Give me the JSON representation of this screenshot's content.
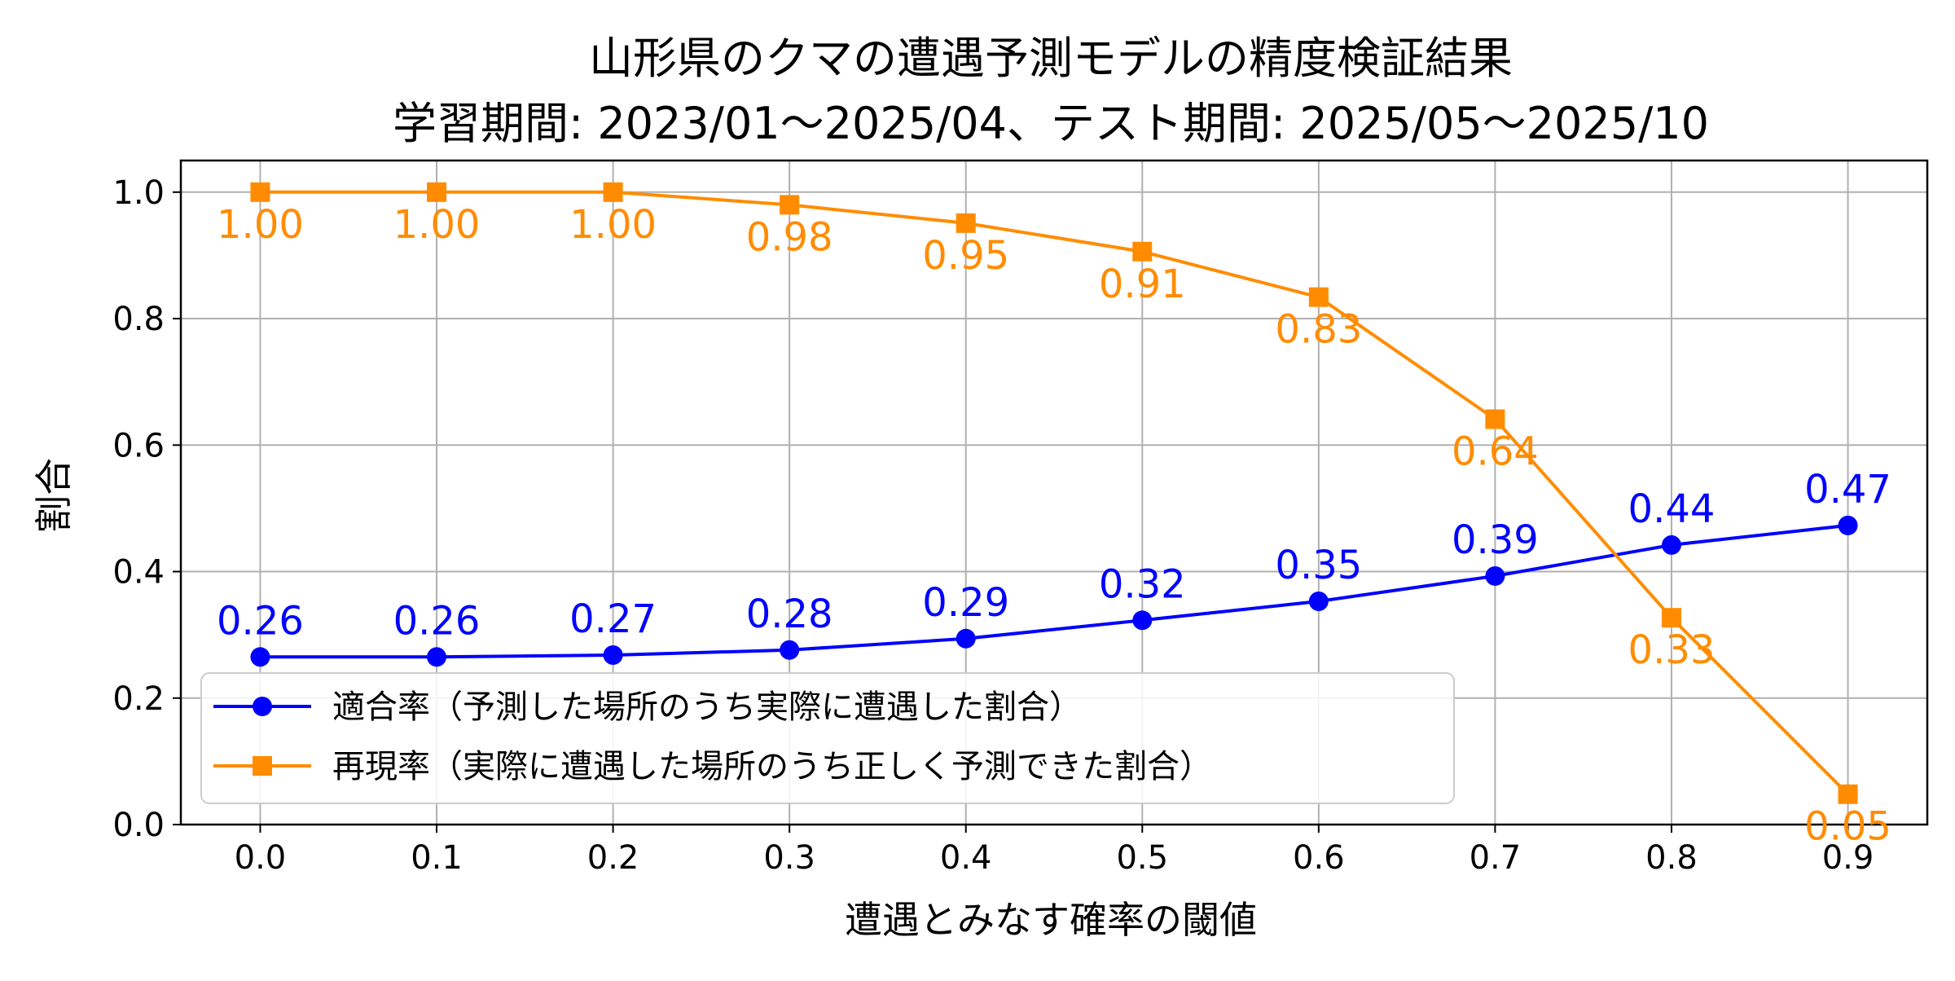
{
  "chart_data": {
    "type": "line",
    "title_line1": "山形県のクマの遭遇予測モデルの精度検証結果",
    "title_line2": "学習期間: 2023/01～2025/04、テスト期間: 2025/05～2025/10",
    "xlabel": "遭遇とみなす確率の閾値",
    "ylabel": "割合",
    "x": [
      0.0,
      0.1,
      0.2,
      0.3,
      0.4,
      0.5,
      0.6,
      0.7,
      0.8,
      0.9
    ],
    "x_tick_labels": [
      "0.0",
      "0.1",
      "0.2",
      "0.3",
      "0.4",
      "0.5",
      "0.6",
      "0.7",
      "0.8",
      "0.9"
    ],
    "y_ticks": [
      0.0,
      0.2,
      0.4,
      0.6,
      0.8,
      1.0
    ],
    "y_tick_labels": [
      "0.0",
      "0.2",
      "0.4",
      "0.6",
      "0.8",
      "1.0"
    ],
    "xlim": [
      -0.045,
      0.945
    ],
    "ylim": [
      0.0,
      1.05
    ],
    "grid": true,
    "legend_position": "lower-left",
    "series": [
      {
        "name": "適合率（予測した場所のうち実際に遭遇した割合）",
        "color": "#0000ff",
        "marker": "circle",
        "label_position": "above",
        "values": [
          0.265,
          0.265,
          0.268,
          0.276,
          0.294,
          0.323,
          0.353,
          0.393,
          0.442,
          0.473
        ],
        "labels": [
          "0.26",
          "0.26",
          "0.27",
          "0.28",
          "0.29",
          "0.32",
          "0.35",
          "0.39",
          "0.44",
          "0.47"
        ]
      },
      {
        "name": "再現率（実際に遭遇した場所のうち正しく予測できた割合）",
        "color": "#ff8c00",
        "marker": "square",
        "label_position": "below",
        "values": [
          1.0,
          1.0,
          1.0,
          0.98,
          0.951,
          0.906,
          0.834,
          0.641,
          0.327,
          0.048
        ],
        "labels": [
          "1.00",
          "1.00",
          "1.00",
          "0.98",
          "0.95",
          "0.91",
          "0.83",
          "0.64",
          "0.33",
          "0.05"
        ]
      }
    ]
  }
}
